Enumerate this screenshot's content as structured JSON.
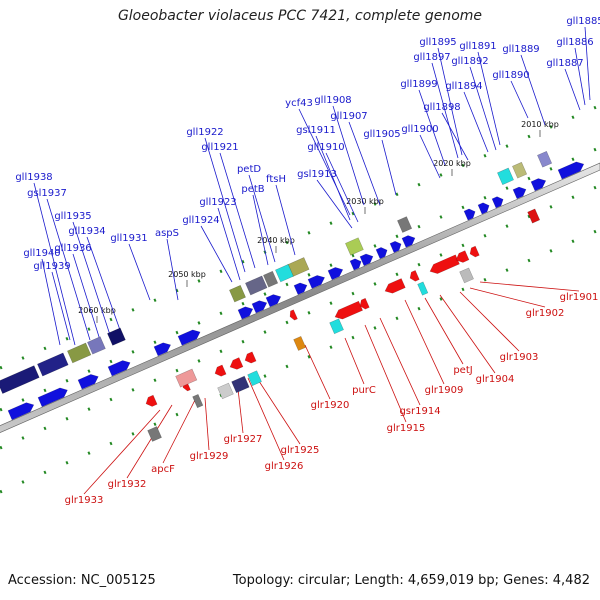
{
  "title": "Gloeobacter violaceus PCC 7421, complete genome",
  "accession_text": "Accession: NC_005125",
  "summary_text": "Topology: circular; Length: 4,659,019 bp; Genes: 4,482",
  "colors": {
    "forward": "#1010dd",
    "reverse": "#ee1010",
    "label_forward": "#1a1acc",
    "label_reverse": "#cc1010",
    "backbone": "#777777",
    "tick": "#228822"
  },
  "ruler": [
    "2010 kbp",
    "2020 kbp",
    "2030 kbp",
    "2040 kbp",
    "2050 kbp",
    "2060 kbp"
  ],
  "forward_labels": [
    "gll1885",
    "gll1886",
    "gll1887",
    "gll1889",
    "gll1890",
    "gll1891",
    "gll1892",
    "gll1894",
    "gll1895",
    "gll1897",
    "gll1898",
    "gll1899",
    "gll1900",
    "gll1905",
    "gll1907",
    "gll1908",
    "ycf43",
    "gsl1911",
    "gll1910",
    "gsl1913",
    "ftsH",
    "petD",
    "petB",
    "gll1921",
    "gll1922",
    "gll1923",
    "gll1924",
    "aspS",
    "gll1931",
    "gll1934",
    "gll1935",
    "gll1936",
    "gsl1937",
    "gll1938",
    "gll1939",
    "gll1940"
  ],
  "reverse_labels": [
    "glr1901",
    "glr1902",
    "glr1903",
    "glr1904",
    "petJ",
    "glr1909",
    "gsr1914",
    "glr1915",
    "purC",
    "glr1920",
    "glr1925",
    "glr1926",
    "glr1927",
    "glr1929",
    "apcF",
    "glr1932",
    "glr1933"
  ]
}
